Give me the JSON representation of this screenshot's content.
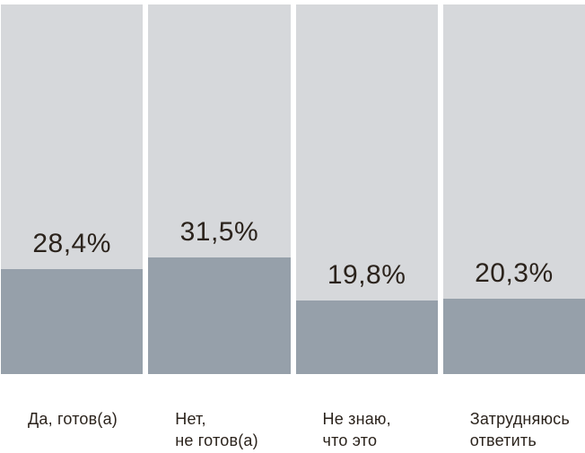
{
  "chart_data": {
    "type": "bar",
    "variant": "filled-column-percentage",
    "title": "",
    "categories": [
      [
        "Да, готов(а)"
      ],
      [
        "Нет,",
        "не готов(а)"
      ],
      [
        "Не знаю,",
        "что это"
      ],
      [
        "Затрудняюсь",
        "ответить"
      ]
    ],
    "values": [
      28.4,
      31.5,
      19.8,
      20.3
    ],
    "value_labels": [
      "28,4%",
      "31,5%",
      "19,8%",
      "20,3%"
    ],
    "ylim": [
      0,
      100
    ],
    "grid": false,
    "legend": "none",
    "colors": {
      "column_track": "#d6d8db",
      "column_fill": "#96a0aa",
      "label_text": "#2b231c",
      "background": "#ffffff"
    }
  }
}
